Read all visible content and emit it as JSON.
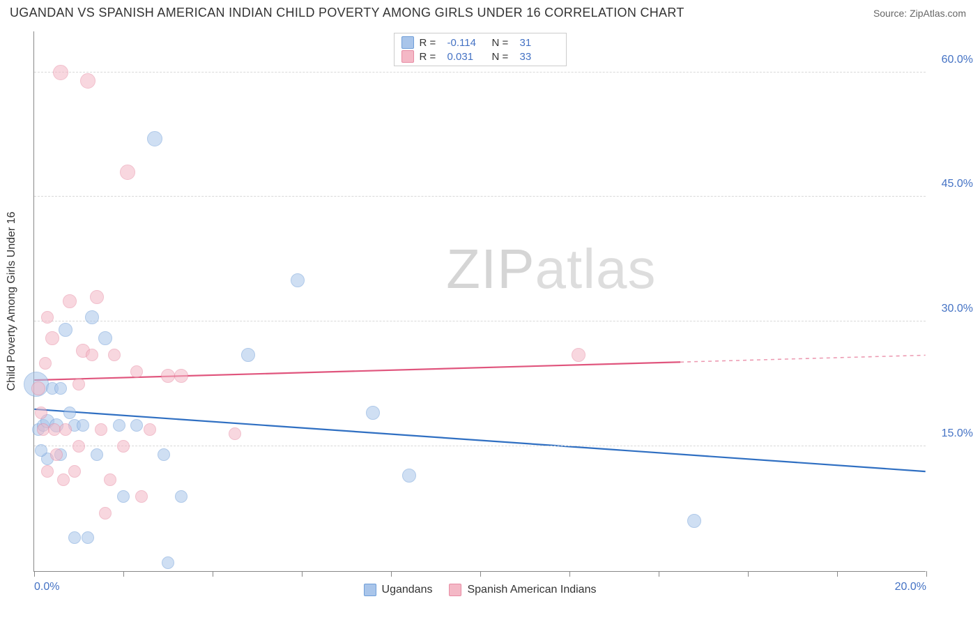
{
  "header": {
    "title": "UGANDAN VS SPANISH AMERICAN INDIAN CHILD POVERTY AMONG GIRLS UNDER 16 CORRELATION CHART",
    "source": "Source: ZipAtlas.com"
  },
  "watermark": {
    "bold": "ZIP",
    "light": "atlas"
  },
  "chart": {
    "type": "scatter",
    "background_color": "#ffffff",
    "grid_color": "#d8d8d8",
    "axis_color": "#888888",
    "tick_label_color": "#4472c4",
    "text_color": "#333333",
    "tick_fontsize": 16,
    "yaxis_label": "Child Poverty Among Girls Under 16",
    "xlim": [
      0,
      20
    ],
    "ylim": [
      0,
      65
    ],
    "xticks": [
      {
        "v": 0,
        "label": "0.0%"
      },
      {
        "v": 2,
        "label": ""
      },
      {
        "v": 4,
        "label": ""
      },
      {
        "v": 6,
        "label": ""
      },
      {
        "v": 8,
        "label": ""
      },
      {
        "v": 10,
        "label": ""
      },
      {
        "v": 12,
        "label": ""
      },
      {
        "v": 14,
        "label": ""
      },
      {
        "v": 16,
        "label": ""
      },
      {
        "v": 18,
        "label": ""
      },
      {
        "v": 20,
        "label": "20.0%"
      }
    ],
    "yticks": [
      {
        "v": 15,
        "label": "15.0%"
      },
      {
        "v": 30,
        "label": "30.0%"
      },
      {
        "v": 45,
        "label": "45.0%"
      },
      {
        "v": 60,
        "label": "60.0%"
      }
    ],
    "series": [
      {
        "name": "Ugandans",
        "fill_color": "#a9c5ea",
        "fill_opacity": 0.55,
        "stroke_color": "#6f9ed8",
        "line_color": "#2f6fc2",
        "line_width": 2.2,
        "marker_radius": 10,
        "R": "-0.114",
        "N": "31",
        "trend": {
          "x1": 0,
          "y1": 19.5,
          "x2": 20,
          "y2": 12.0,
          "solid_until_x": 20
        },
        "points": [
          {
            "x": 0.05,
            "y": 22.5,
            "r": 18
          },
          {
            "x": 0.1,
            "y": 17,
            "r": 9
          },
          {
            "x": 0.2,
            "y": 17.5,
            "r": 9
          },
          {
            "x": 0.3,
            "y": 18,
            "r": 10
          },
          {
            "x": 0.3,
            "y": 13.5,
            "r": 9
          },
          {
            "x": 0.5,
            "y": 17.5,
            "r": 10
          },
          {
            "x": 0.6,
            "y": 14,
            "r": 9
          },
          {
            "x": 0.7,
            "y": 29,
            "r": 10
          },
          {
            "x": 0.9,
            "y": 17.5,
            "r": 9
          },
          {
            "x": 0.9,
            "y": 4,
            "r": 9
          },
          {
            "x": 1.2,
            "y": 4,
            "r": 9
          },
          {
            "x": 1.1,
            "y": 17.5,
            "r": 9
          },
          {
            "x": 1.3,
            "y": 30.5,
            "r": 10
          },
          {
            "x": 1.6,
            "y": 28,
            "r": 10
          },
          {
            "x": 1.9,
            "y": 17.5,
            "r": 9
          },
          {
            "x": 2.0,
            "y": 9,
            "r": 9
          },
          {
            "x": 2.7,
            "y": 52,
            "r": 11
          },
          {
            "x": 2.9,
            "y": 14,
            "r": 9
          },
          {
            "x": 3.0,
            "y": 1,
            "r": 9
          },
          {
            "x": 3.3,
            "y": 9,
            "r": 9
          },
          {
            "x": 4.8,
            "y": 26,
            "r": 10
          },
          {
            "x": 5.9,
            "y": 35,
            "r": 10
          },
          {
            "x": 7.6,
            "y": 19,
            "r": 10
          },
          {
            "x": 8.4,
            "y": 11.5,
            "r": 10
          },
          {
            "x": 14.8,
            "y": 6,
            "r": 10
          },
          {
            "x": 0.4,
            "y": 22,
            "r": 9
          },
          {
            "x": 0.15,
            "y": 14.5,
            "r": 9
          },
          {
            "x": 0.6,
            "y": 22,
            "r": 9
          },
          {
            "x": 1.4,
            "y": 14,
            "r": 9
          },
          {
            "x": 2.3,
            "y": 17.5,
            "r": 9
          },
          {
            "x": 0.8,
            "y": 19,
            "r": 9
          }
        ]
      },
      {
        "name": "Spanish American Indians",
        "fill_color": "#f4b8c6",
        "fill_opacity": 0.55,
        "stroke_color": "#e78ba3",
        "line_color": "#e0557d",
        "line_width": 2.2,
        "marker_radius": 10,
        "R": "0.031",
        "N": "33",
        "trend": {
          "x1": 0,
          "y1": 23.0,
          "x2": 20,
          "y2": 26.0,
          "solid_until_x": 14.5
        },
        "points": [
          {
            "x": 0.1,
            "y": 22,
            "r": 10
          },
          {
            "x": 0.15,
            "y": 19,
            "r": 9
          },
          {
            "x": 0.2,
            "y": 17,
            "r": 9
          },
          {
            "x": 0.3,
            "y": 30.5,
            "r": 9
          },
          {
            "x": 0.3,
            "y": 12,
            "r": 9
          },
          {
            "x": 0.4,
            "y": 28,
            "r": 10
          },
          {
            "x": 0.45,
            "y": 17,
            "r": 9
          },
          {
            "x": 0.5,
            "y": 14,
            "r": 9
          },
          {
            "x": 0.6,
            "y": 60,
            "r": 11
          },
          {
            "x": 0.65,
            "y": 11,
            "r": 9
          },
          {
            "x": 0.7,
            "y": 17,
            "r": 9
          },
          {
            "x": 0.8,
            "y": 32.5,
            "r": 10
          },
          {
            "x": 0.9,
            "y": 12,
            "r": 9
          },
          {
            "x": 1.0,
            "y": 15,
            "r": 9
          },
          {
            "x": 1.1,
            "y": 26.5,
            "r": 10
          },
          {
            "x": 1.2,
            "y": 59,
            "r": 11
          },
          {
            "x": 1.3,
            "y": 26,
            "r": 9
          },
          {
            "x": 1.4,
            "y": 33,
            "r": 10
          },
          {
            "x": 1.5,
            "y": 17,
            "r": 9
          },
          {
            "x": 1.7,
            "y": 11,
            "r": 9
          },
          {
            "x": 1.8,
            "y": 26,
            "r": 9
          },
          {
            "x": 2.0,
            "y": 15,
            "r": 9
          },
          {
            "x": 2.1,
            "y": 48,
            "r": 11
          },
          {
            "x": 2.3,
            "y": 24,
            "r": 9
          },
          {
            "x": 2.4,
            "y": 9,
            "r": 9
          },
          {
            "x": 2.6,
            "y": 17,
            "r": 9
          },
          {
            "x": 3.0,
            "y": 23.5,
            "r": 10
          },
          {
            "x": 3.3,
            "y": 23.5,
            "r": 10
          },
          {
            "x": 4.5,
            "y": 16.5,
            "r": 9
          },
          {
            "x": 12.2,
            "y": 26,
            "r": 10
          },
          {
            "x": 0.25,
            "y": 25,
            "r": 9
          },
          {
            "x": 1.0,
            "y": 22.5,
            "r": 9
          },
          {
            "x": 1.6,
            "y": 7,
            "r": 9
          }
        ]
      }
    ],
    "legend_bottom": [
      {
        "label": "Ugandans",
        "fill": "#a9c5ea",
        "stroke": "#6f9ed8"
      },
      {
        "label": "Spanish American Indians",
        "fill": "#f4b8c6",
        "stroke": "#e78ba3"
      }
    ]
  }
}
